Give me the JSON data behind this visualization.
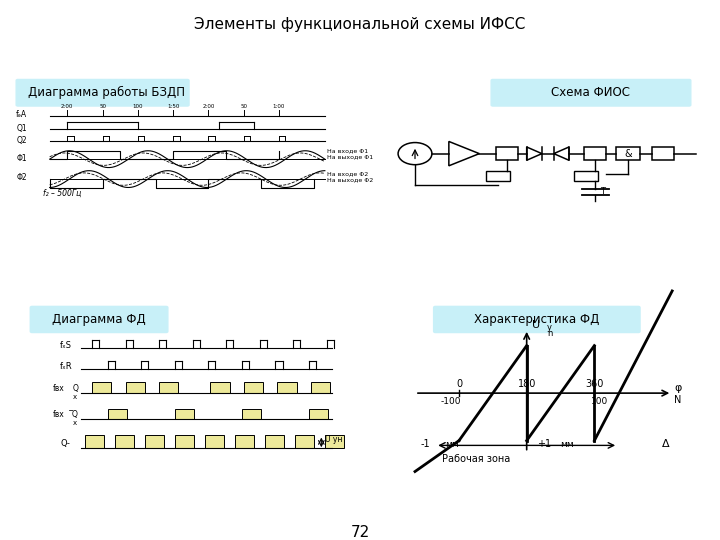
{
  "title": "Элементы функциональной схемы ИФСС",
  "title_bg": "#c8f0f8",
  "panel_bg": "#c8f0f8",
  "bg_color": "#ffffff",
  "panel1_title": "Диаграмма работы БЗДП",
  "panel2_title": "Схема ФИОС",
  "panel3_title": "Диаграмма ФД",
  "panel4_title": "Характеристика ФД",
  "page_number": "72"
}
